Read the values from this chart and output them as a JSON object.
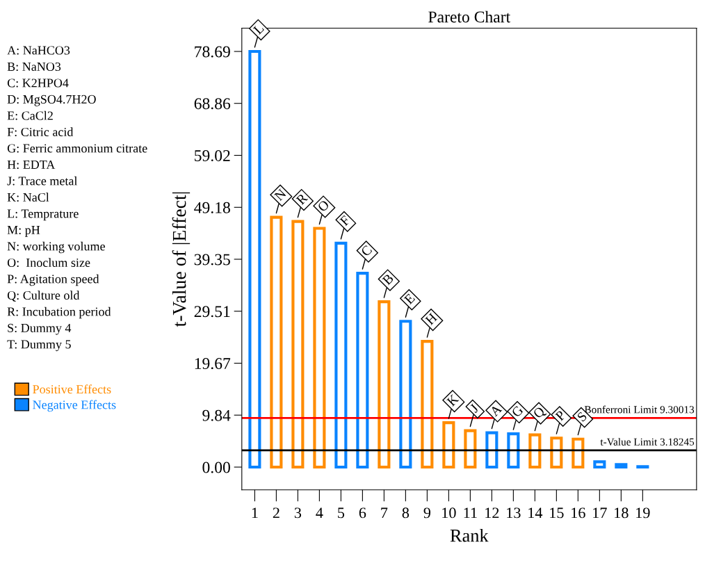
{
  "chart_data": {
    "type": "bar",
    "title": "Pareto Chart",
    "xlabel": "Rank",
    "ylabel": "t-Value of |Effect|",
    "categories": [
      "1",
      "2",
      "3",
      "4",
      "5",
      "6",
      "7",
      "8",
      "9",
      "10",
      "11",
      "12",
      "13",
      "14",
      "15",
      "16",
      "17",
      "18",
      "19"
    ],
    "series": [
      {
        "name": "Positive Effects",
        "color": "#ff8c00",
        "values": [
          null,
          47.3,
          46.5,
          45.2,
          null,
          null,
          31.3,
          null,
          23.8,
          8.4,
          6.9,
          null,
          null,
          6.1,
          5.5,
          5.3,
          null,
          null,
          null
        ]
      },
      {
        "name": "Negative Effects",
        "color": "#0a84ff",
        "values": [
          78.69,
          null,
          null,
          null,
          42.4,
          36.7,
          null,
          27.6,
          null,
          null,
          null,
          6.5,
          6.3,
          null,
          null,
          null,
          1.0,
          0.5,
          0.1
        ]
      }
    ],
    "ylim": [
      -4.3,
      83.1
    ],
    "yticks": [
      {
        "value": 0,
        "label": "0.00"
      },
      {
        "value": 9.84,
        "label": "9.84"
      },
      {
        "value": 19.67,
        "label": "19.67"
      },
      {
        "value": 29.51,
        "label": "29.51"
      },
      {
        "value": 39.35,
        "label": "39.35"
      },
      {
        "value": 49.18,
        "label": "49.18"
      },
      {
        "value": 59.02,
        "label": "59.02"
      },
      {
        "value": 68.86,
        "label": "68.86"
      },
      {
        "value": 78.69,
        "label": "78.69"
      }
    ],
    "ref_lines": [
      {
        "axis": "y",
        "value": 9.30013,
        "label": "Bonferroni Limit 9.30013",
        "color": "#ff0000"
      },
      {
        "axis": "y",
        "value": 3.18245,
        "label": "t-Value Limit 3.18245",
        "color": "#000000"
      }
    ],
    "annotations": [
      {
        "text": "L",
        "x": "1",
        "y": 78.69
      },
      {
        "text": "N",
        "x": "2",
        "y": 47.3
      },
      {
        "text": "R",
        "x": "3",
        "y": 46.5
      },
      {
        "text": "O",
        "x": "4",
        "y": 45.2
      },
      {
        "text": "F",
        "x": "5",
        "y": 42.4
      },
      {
        "text": "C",
        "x": "6",
        "y": 36.7
      },
      {
        "text": "B",
        "x": "7",
        "y": 31.3
      },
      {
        "text": "E",
        "x": "8",
        "y": 27.6
      },
      {
        "text": "H",
        "x": "9",
        "y": 23.8
      },
      {
        "text": "K",
        "x": "10",
        "y": 8.4
      },
      {
        "text": "J",
        "x": "11",
        "y": 6.9
      },
      {
        "text": "A",
        "x": "12",
        "y": 6.5
      },
      {
        "text": "G",
        "x": "13",
        "y": 6.3
      },
      {
        "text": "Q",
        "x": "14",
        "y": 6.1
      },
      {
        "text": "P",
        "x": "15",
        "y": 5.5
      },
      {
        "text": "S",
        "x": "16",
        "y": 5.3
      },
      "A: NaHCO3",
      "B: NaNO3",
      "C: K2HPO4",
      "D: MgSO4.7H2O",
      "E: CaCl2",
      "F: Citric acid",
      "G: Ferric ammonium citrate",
      "H: EDTA",
      "J: Trace metal",
      "K: NaCl",
      "L: Temprature",
      "M: pH",
      "N: working volume",
      "O:  Inoclum size",
      "P: Agitation speed",
      "Q: Culture old",
      "R: Incubation period",
      "S: Dummy 4",
      "T: Dummy 5"
    ],
    "legend": "left",
    "grid": false
  }
}
